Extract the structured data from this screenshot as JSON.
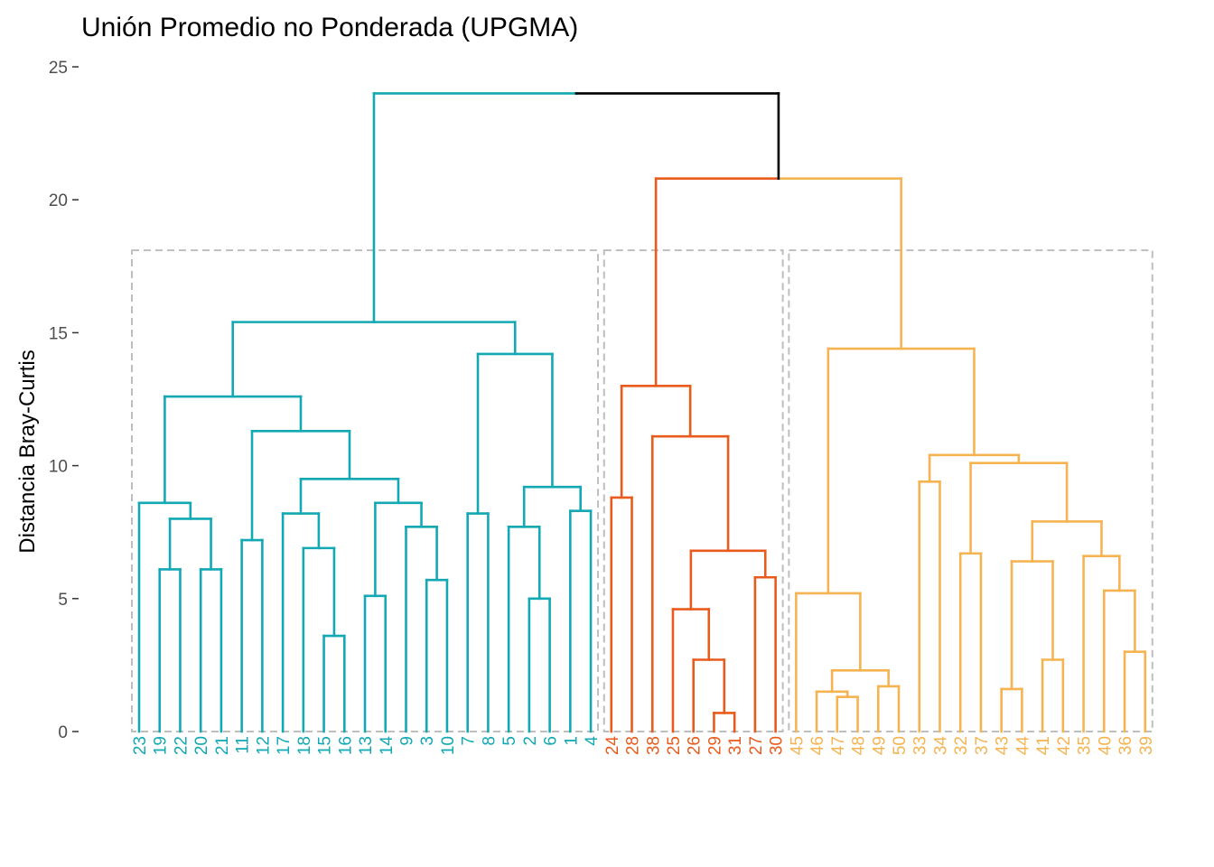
{
  "chart_data": {
    "type": "dendrogram",
    "title": "Unión Promedio no Ponderada (UPGMA)",
    "ylabel": "Distancia Bray-Curtis",
    "xlabel": "",
    "ylim": [
      0,
      25
    ],
    "yticks": [
      0,
      5,
      10,
      15,
      20,
      25
    ],
    "grid": false,
    "leaves": [
      "23",
      "19",
      "22",
      "20",
      "21",
      "11",
      "12",
      "17",
      "18",
      "15",
      "16",
      "13",
      "14",
      "9",
      "3",
      "10",
      "7",
      "8",
      "5",
      "2",
      "6",
      "1",
      "4",
      "24",
      "28",
      "38",
      "25",
      "26",
      "29",
      "31",
      "27",
      "30",
      "45",
      "46",
      "47",
      "48",
      "49",
      "50",
      "33",
      "34",
      "32",
      "37",
      "43",
      "44",
      "41",
      "42",
      "35",
      "40",
      "36",
      "39"
    ],
    "clusters": [
      {
        "leaves": [
          "23",
          "19",
          "22",
          "20",
          "21",
          "11",
          "12",
          "17",
          "18",
          "15",
          "16",
          "13",
          "14",
          "9",
          "3",
          "10",
          "7",
          "8",
          "5",
          "2",
          "6",
          "1",
          "4"
        ],
        "color": "#12a9b5"
      },
      {
        "leaves": [
          "24",
          "28",
          "38",
          "25",
          "26",
          "29",
          "31",
          "27",
          "30"
        ],
        "color": "#e95b1c"
      },
      {
        "leaves": [
          "45",
          "46",
          "47",
          "48",
          "49",
          "50",
          "33",
          "34",
          "32",
          "37",
          "43",
          "44",
          "41",
          "42",
          "35",
          "40",
          "36",
          "39"
        ],
        "color": "#f5b451"
      }
    ],
    "root_color": "#000000",
    "cut_height": 18.1,
    "cut_box_color": "#bebebe",
    "merges": [
      {
        "a": "15",
        "b": "16",
        "height": 3.6
      },
      {
        "a": "3",
        "b": "10",
        "height": 5.7
      },
      {
        "a": "9",
        "b": "m2",
        "height": 7.7
      },
      {
        "a": "13",
        "b": "14",
        "height": 5.1
      },
      {
        "a": "m4",
        "b": "m3",
        "height": 8.6
      },
      {
        "a": "18",
        "b": "m1",
        "height": 6.9
      },
      {
        "a": "17",
        "b": "m6",
        "height": 8.2
      },
      {
        "a": "m7",
        "b": "m5",
        "height": 9.5
      },
      {
        "a": "11",
        "b": "12",
        "height": 7.2
      },
      {
        "a": "m9",
        "b": "m8",
        "height": 11.3
      },
      {
        "a": "19",
        "b": "22",
        "height": 6.1
      },
      {
        "a": "20",
        "b": "21",
        "height": 6.1
      },
      {
        "a": "m11",
        "b": "m12",
        "height": 8.0
      },
      {
        "a": "23",
        "b": "m13",
        "height": 8.6
      },
      {
        "a": "m14",
        "b": "m10",
        "height": 12.6
      },
      {
        "a": "7",
        "b": "8",
        "height": 8.2
      },
      {
        "a": "2",
        "b": "6",
        "height": 5.0
      },
      {
        "a": "5",
        "b": "m17",
        "height": 7.7
      },
      {
        "a": "1",
        "b": "4",
        "height": 8.3
      },
      {
        "a": "m18",
        "b": "m19",
        "height": 9.2
      },
      {
        "a": "m16",
        "b": "m20",
        "height": 14.2
      },
      {
        "a": "m15",
        "b": "m21",
        "height": 15.4
      },
      {
        "a": "29",
        "b": "31",
        "height": 0.7
      },
      {
        "a": "26",
        "b": "m23",
        "height": 2.7
      },
      {
        "a": "25",
        "b": "m24",
        "height": 4.6
      },
      {
        "a": "27",
        "b": "30",
        "height": 5.8
      },
      {
        "a": "m25",
        "b": "m26",
        "height": 6.8
      },
      {
        "a": "38",
        "b": "m27",
        "height": 11.1
      },
      {
        "a": "24",
        "b": "28",
        "height": 8.8
      },
      {
        "a": "m29",
        "b": "m28",
        "height": 13.0
      },
      {
        "a": "47",
        "b": "48",
        "height": 1.3
      },
      {
        "a": "46",
        "b": "m31",
        "height": 1.5
      },
      {
        "a": "49",
        "b": "50",
        "height": 1.7
      },
      {
        "a": "m32",
        "b": "m33",
        "height": 2.3
      },
      {
        "a": "45",
        "b": "m34",
        "height": 5.2
      },
      {
        "a": "33",
        "b": "34",
        "height": 9.4
      },
      {
        "a": "32",
        "b": "37",
        "height": 6.7
      },
      {
        "a": "43",
        "b": "44",
        "height": 1.6
      },
      {
        "a": "41",
        "b": "42",
        "height": 2.7
      },
      {
        "a": "m38",
        "b": "m39",
        "height": 6.4
      },
      {
        "a": "36",
        "b": "39",
        "height": 3.0
      },
      {
        "a": "40",
        "b": "m41",
        "height": 5.3
      },
      {
        "a": "35",
        "b": "m42",
        "height": 6.6
      },
      {
        "a": "m40",
        "b": "m43",
        "height": 7.9
      },
      {
        "a": "m37",
        "b": "m44",
        "height": 10.1
      },
      {
        "a": "m36",
        "b": "m45",
        "height": 10.4
      },
      {
        "a": "m35",
        "b": "m46",
        "height": 14.4
      },
      {
        "a": "m30",
        "b": "m47",
        "height": 20.8
      },
      {
        "a": "m22",
        "b": "m48",
        "height": 24.0
      }
    ]
  }
}
